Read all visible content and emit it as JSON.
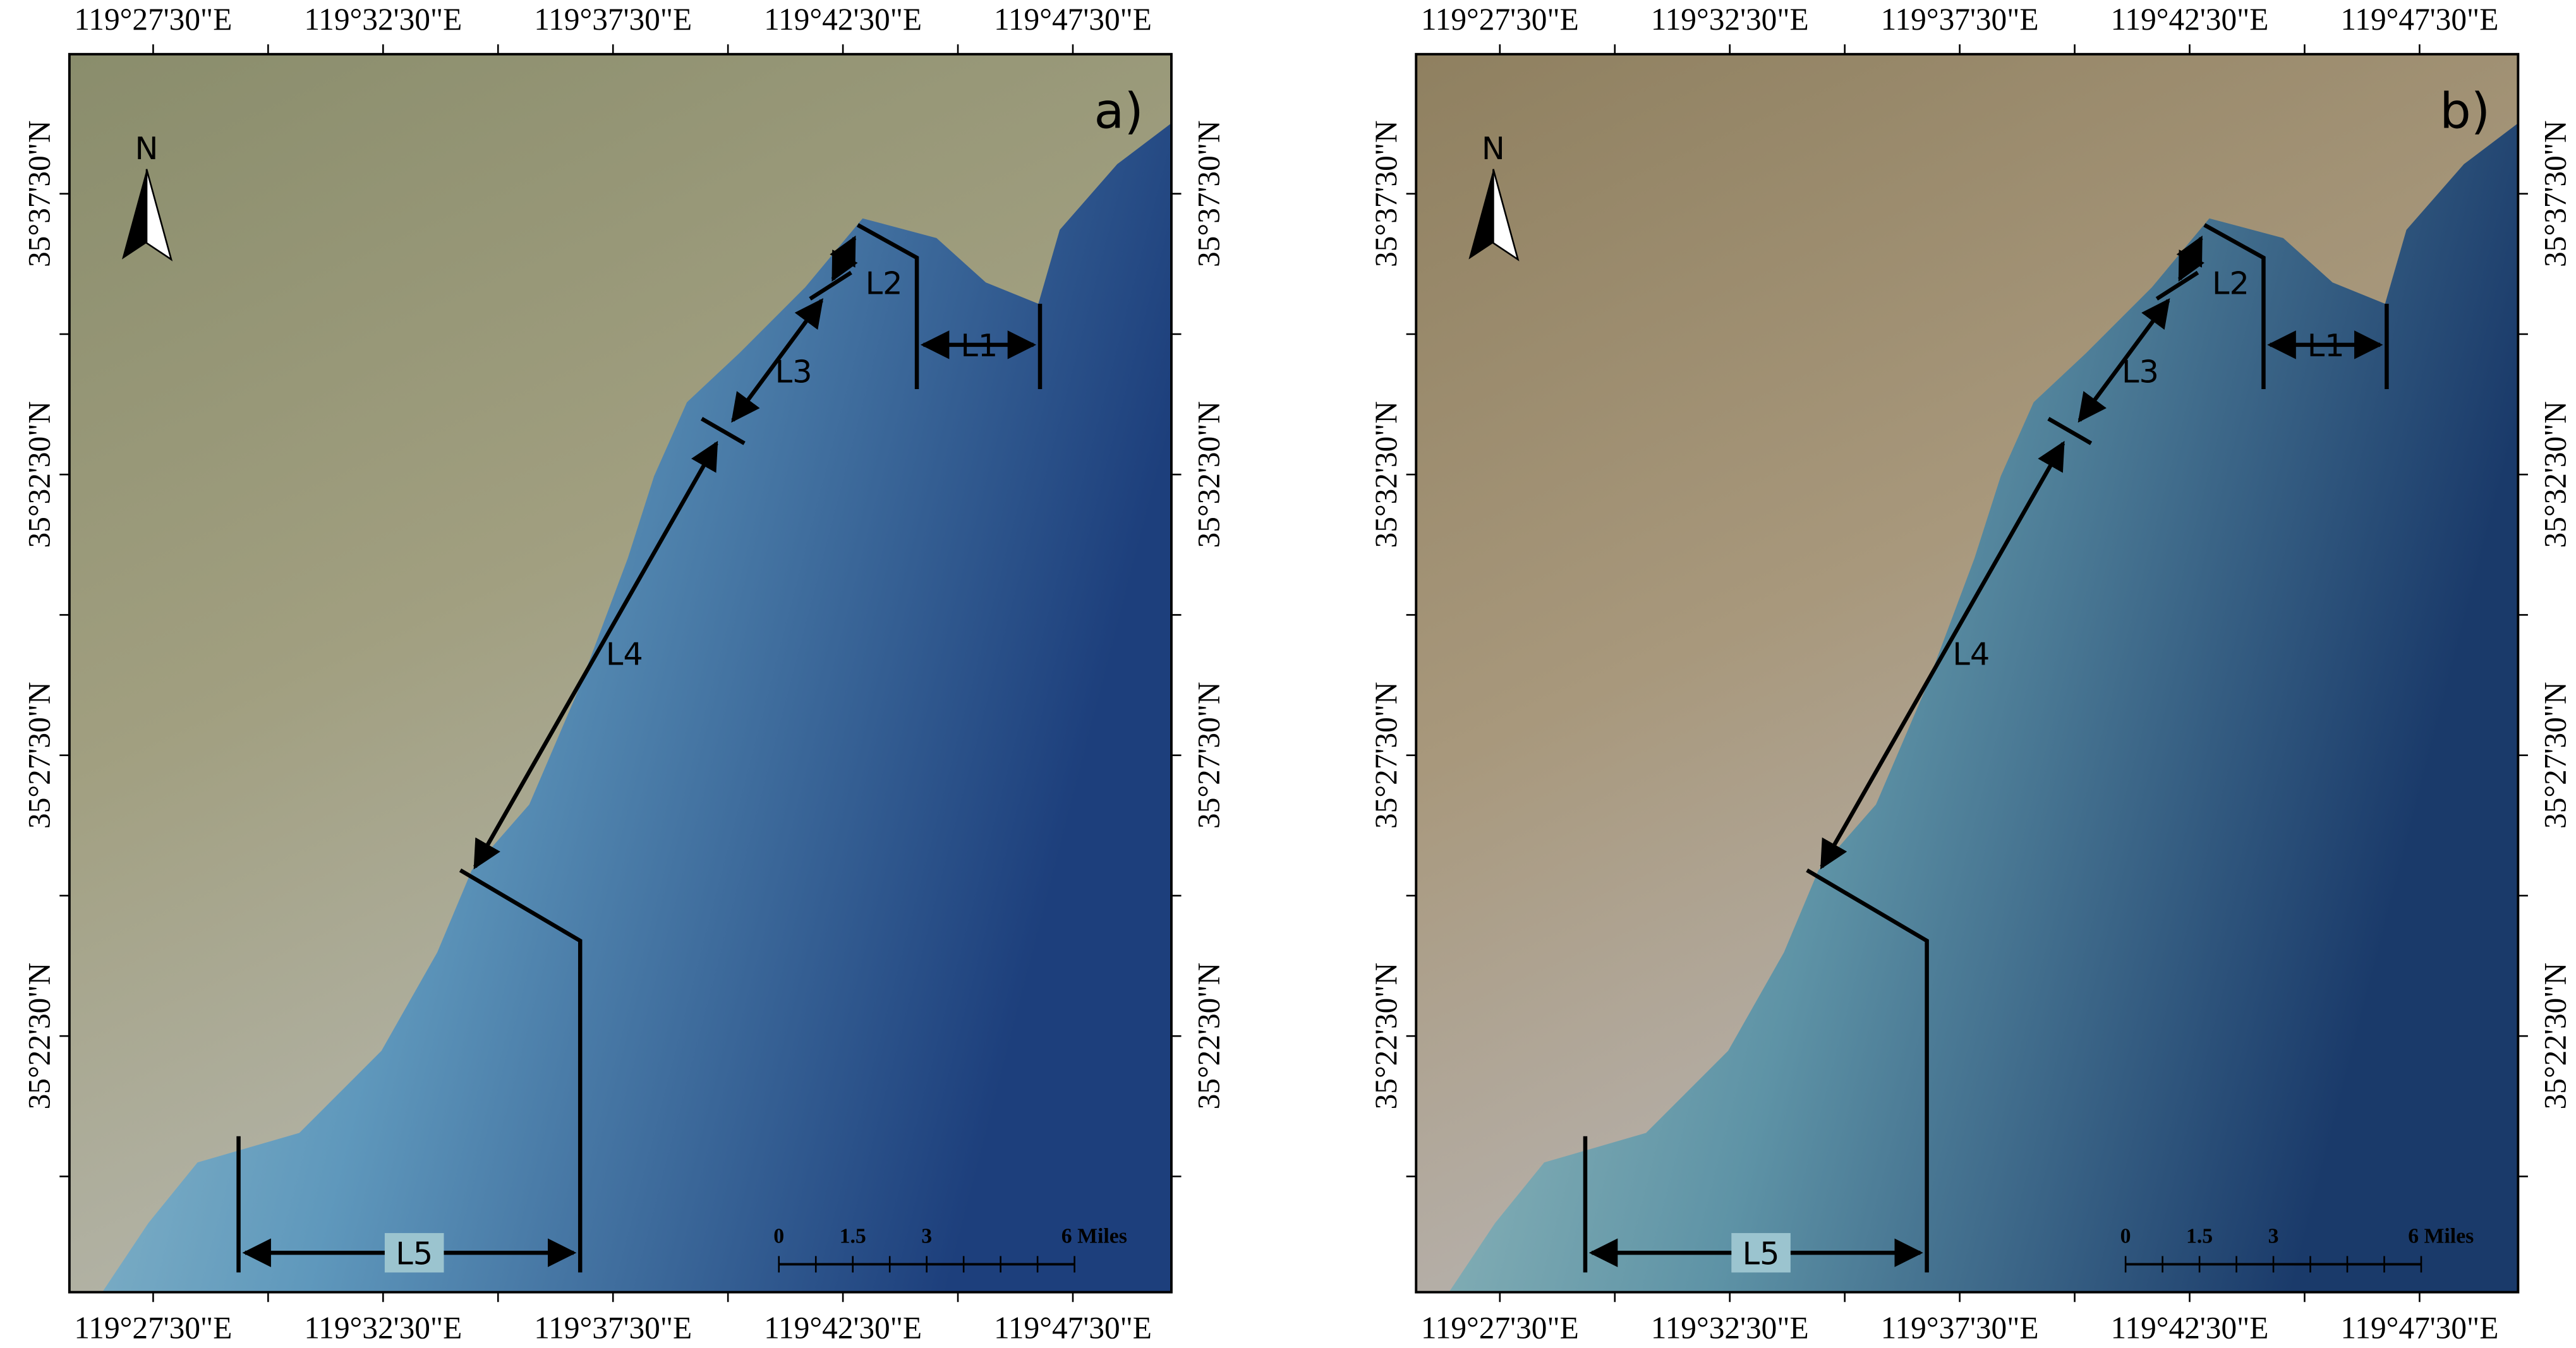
{
  "panels": [
    {
      "label": "a)"
    },
    {
      "label": "b)"
    }
  ],
  "longitude_labels": [
    "119°27'30\"E",
    "119°32'30\"E",
    "119°37'30\"E",
    "119°42'30\"E",
    "119°47'30\"E"
  ],
  "latitude_labels": [
    "35°37'30\"N",
    "35°32'30\"N",
    "35°27'30\"N",
    "35°22'30\"N"
  ],
  "north_arrow": "N",
  "segments": [
    "L1",
    "L2",
    "L3",
    "L4",
    "L5"
  ],
  "scale_bar": [
    "0",
    "1.5",
    "3",
    "6 Miles"
  ]
}
